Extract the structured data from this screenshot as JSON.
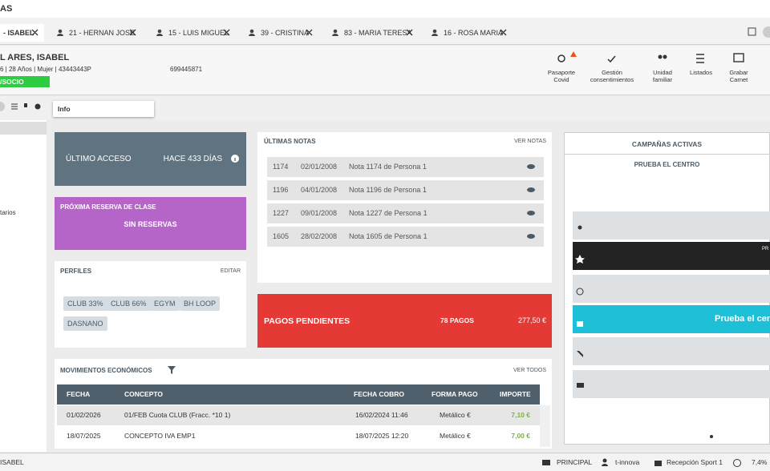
{
  "app_title": "AS",
  "tabs": [
    "- ISABEL",
    "21 - HERNAN JOSE",
    "15 - LUIS MIGUEL",
    "39 - CRISTINA",
    "83 - MARIA TERESA",
    "16 - ROSA MARIA"
  ],
  "member": {
    "name": "L ARES, ISABEL",
    "details": "6 | 28 Años | Mujer | 43443443P",
    "phone": "699445871",
    "badge": "/SOCIO"
  },
  "actions": [
    [
      "Pasaporte",
      "Covid"
    ],
    [
      "Gestión",
      "consentimientos"
    ],
    [
      "Unidad",
      "familiar"
    ],
    [
      "Listados"
    ],
    [
      "Grabar",
      "Carnet"
    ]
  ],
  "toolbar": {
    "info": "Info"
  },
  "sidebar": {
    "item": "tarios"
  },
  "last_access": {
    "label": "ÚLTIMO ACCESO",
    "value": "HACE 433 DÍAS"
  },
  "next_class": {
    "label": "PRÓXIMA RESERVA DE CLASE",
    "value": "SIN RESERVAS"
  },
  "profiles": {
    "title": "PERFILES",
    "edit": "EDITAR",
    "tags": [
      "CLUB 33%",
      "CLUB 66%",
      "EGYM",
      "BH LOOP",
      "DASNANO"
    ]
  },
  "notes": {
    "title": "ÚLTIMAS NOTAS",
    "link": "VER NOTAS",
    "rows": [
      [
        "1174",
        "02/01/2008",
        "Nota 1174 de Persona 1"
      ],
      [
        "1196",
        "04/01/2008",
        "Nota 1196 de Persona 1"
      ],
      [
        "1227",
        "09/01/2008",
        "Nota 1227 de Persona 1"
      ],
      [
        "1605",
        "28/02/2008",
        "Nota 1605 de Persona 1"
      ]
    ]
  },
  "payments": {
    "title": "PAGOS PENDIENTES",
    "count": "78 PAGOS",
    "amount": "277,50 €"
  },
  "movements": {
    "title": "MOVIMIENTOS ECONÓMICOS",
    "link": "VER TODOS",
    "header": [
      "FECHA",
      "CONCEPTO",
      "FECHA COBRO",
      "FORMA PAGO",
      "IMPORTE"
    ],
    "rows": [
      [
        "01/02/2026",
        "01/FEB Cuota CLUB (Fracc. *10 1)",
        "16/02/2024 11:46",
        "Metálico €",
        "7,10 €"
      ],
      [
        "18/07/2025",
        "CONCEPTO IVA EMP1",
        "18/07/2025 12:20",
        "Metálico €",
        "7,00 €"
      ]
    ]
  },
  "campaigns": {
    "title": "CAMPAÑAS ACTIVAS",
    "subtitle": "PRUEBA EL CENTRO",
    "dark_bar": "PR",
    "cyan_bar": "Prueba el cen"
  },
  "footer": {
    "user": "ISABEL",
    "printer": "PRINCIPAL",
    "company": "t-innova",
    "desk": "Recepción Sport 1",
    "load": "7,4%"
  }
}
